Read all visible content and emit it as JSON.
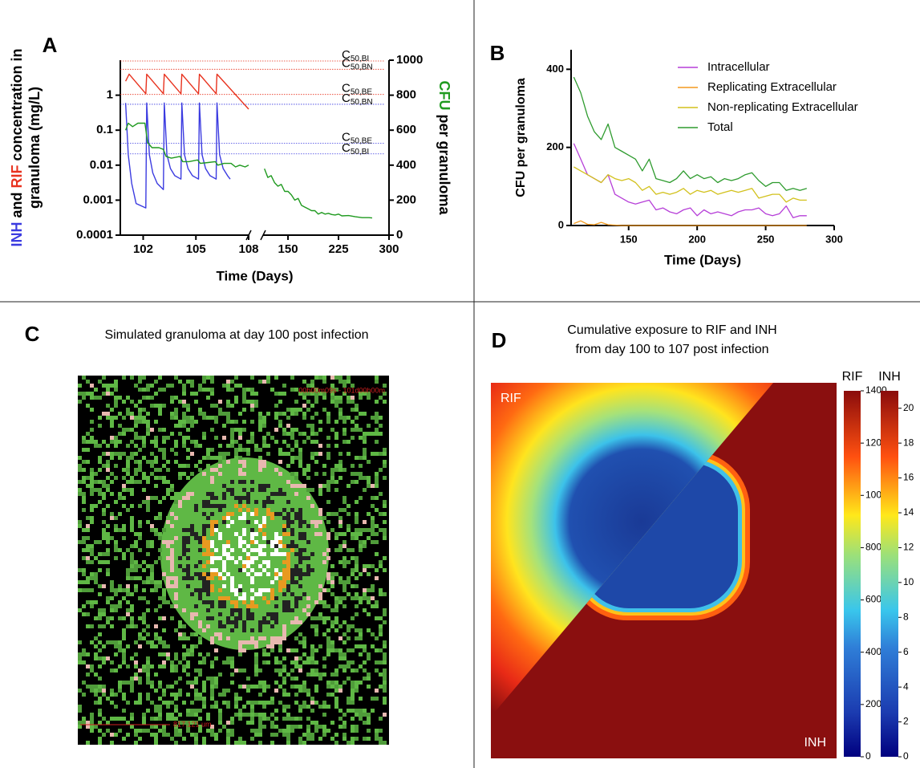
{
  "chart_data": [
    {
      "type": "line",
      "panel": "A",
      "ylabel": [
        [
          {
            "text": "INH",
            "color": "#3b3be0"
          },
          {
            "text": " and "
          },
          {
            "text": "RIF",
            "color": "#e8321e"
          },
          {
            "text": " concentration in"
          }
        ],
        [
          {
            "text": "granuloma (mg/L)"
          }
        ]
      ],
      "y2label": [
        {
          "text": "CFU",
          "color": "#1f9a1f"
        },
        {
          "text": " per granuloma"
        }
      ],
      "xlabel": "Time (Days)",
      "x_segments": [
        {
          "xlim": [
            100.7,
            108
          ],
          "xticks": [
            102,
            105,
            108
          ]
        },
        {
          "xlim": [
            113,
            300
          ],
          "xticks": [
            150,
            225,
            300
          ]
        }
      ],
      "yscale": "log",
      "ylim": [
        0.0001,
        10
      ],
      "yticks": [
        0.0001,
        0.001,
        0.01,
        0.1,
        1
      ],
      "y2lim": [
        0,
        1000
      ],
      "y2ticks": [
        0,
        200,
        400,
        600,
        800,
        1000
      ],
      "reference_lines": [
        {
          "value": 9.5,
          "color": "#e8321e",
          "symbol": "C",
          "subscript": "50,BI"
        },
        {
          "value": 5.5,
          "color": "#e8321e",
          "symbol": "C",
          "subscript": "50,BN"
        },
        {
          "value": 1.05,
          "color": "#e8321e",
          "symbol": "C",
          "subscript": "50,BE"
        },
        {
          "value": 0.55,
          "color": "#3b3be0",
          "symbol": "C",
          "subscript": "50,BN"
        },
        {
          "value": 0.042,
          "color": "#3b3be0",
          "symbol": "C",
          "subscript": "50,BE"
        },
        {
          "value": 0.021,
          "color": "#3b3be0",
          "symbol": "C",
          "subscript": "50,BI"
        }
      ],
      "series": [
        {
          "color": "#3b3be0",
          "x": [
            101.0,
            101.15,
            101.35,
            101.6,
            102.15,
            102.2,
            102.35,
            102.55,
            102.8,
            103.15,
            103.2,
            103.35,
            103.55,
            103.8,
            104.15,
            104.2,
            104.35,
            104.55,
            104.8,
            105.15,
            105.2,
            105.35,
            105.55,
            105.8,
            106.15,
            106.2,
            106.35,
            106.55,
            106.8,
            106.95
          ],
          "values": [
            0.6,
            0.02,
            0.003,
            0.0008,
            0.0006,
            0.6,
            0.02,
            0.006,
            0.003,
            0.002,
            0.6,
            0.02,
            0.008,
            0.005,
            0.004,
            0.6,
            0.02,
            0.008,
            0.005,
            0.004,
            0.6,
            0.02,
            0.008,
            0.005,
            0.004,
            0.6,
            0.02,
            0.008,
            0.005,
            0.004
          ]
        },
        {
          "color": "#e8321e",
          "x": [
            101.0,
            101.2,
            102.15,
            102.2,
            103.15,
            103.2,
            104.15,
            104.2,
            105.15,
            105.2,
            106.15,
            106.2,
            108.0
          ],
          "values": [
            2.5,
            4,
            1.1,
            4,
            1.1,
            4,
            1.1,
            4,
            1.1,
            4,
            1.1,
            4,
            0.4
          ]
        },
        {
          "color": "#1f9a1f",
          "axis": "y2",
          "x": [
            101.0,
            101.15,
            101.4,
            101.7,
            102.1,
            102.25,
            102.5,
            102.9,
            103.15,
            103.3,
            103.6,
            104.1,
            104.25,
            104.6,
            105.1,
            105.25,
            105.7,
            106.1,
            106.25,
            106.6,
            107.0,
            107.25,
            107.5,
            107.8,
            108.0
          ],
          "values": [
            600,
            640,
            620,
            640,
            640,
            530,
            500,
            500,
            490,
            450,
            440,
            450,
            420,
            420,
            430,
            410,
            415,
            420,
            400,
            410,
            410,
            390,
            400,
            390,
            400
          ]
        },
        {
          "color": "#1f9a1f",
          "axis": "y2",
          "x": [
            115,
            120,
            125,
            130,
            135,
            140,
            145,
            150,
            155,
            160,
            165,
            170,
            175,
            180,
            185,
            190,
            195,
            200,
            205,
            210,
            215,
            220,
            225,
            230,
            240,
            250,
            260,
            270,
            275
          ],
          "values": [
            380,
            330,
            340,
            300,
            280,
            290,
            250,
            250,
            230,
            200,
            210,
            170,
            160,
            150,
            140,
            140,
            120,
            130,
            120,
            125,
            118,
            115,
            120,
            110,
            112,
            105,
            100,
            100,
            98
          ]
        }
      ]
    },
    {
      "type": "line",
      "panel": "B",
      "ylabel": "CFU per granuloma",
      "xlabel": "Time (Days)",
      "xlim": [
        108,
        300
      ],
      "xticks": [
        150,
        200,
        250,
        300
      ],
      "ylim": [
        0,
        450
      ],
      "yticks": [
        0,
        200,
        400
      ],
      "legend": "upper right",
      "x": [
        110,
        115,
        120,
        125,
        130,
        135,
        140,
        145,
        150,
        155,
        160,
        165,
        170,
        175,
        180,
        185,
        190,
        195,
        200,
        205,
        210,
        215,
        220,
        225,
        230,
        235,
        240,
        245,
        250,
        255,
        260,
        265,
        270,
        275,
        280
      ],
      "series": [
        {
          "name": "Intracellular",
          "color": "#b63fd8",
          "values": [
            210,
            170,
            130,
            120,
            110,
            130,
            80,
            70,
            60,
            55,
            60,
            65,
            40,
            45,
            35,
            30,
            40,
            45,
            25,
            40,
            30,
            35,
            30,
            25,
            35,
            40,
            40,
            45,
            30,
            25,
            30,
            50,
            20,
            25,
            25
          ]
        },
        {
          "name": "Replicating Extracellular",
          "color": "#f39a1e",
          "values": [
            5,
            12,
            3,
            2,
            8,
            2,
            1,
            0,
            0,
            0,
            0,
            0,
            0,
            0,
            0,
            0,
            0,
            0,
            0,
            0,
            0,
            0,
            0,
            0,
            0,
            0,
            0,
            0,
            0,
            0,
            0,
            0,
            0,
            0,
            0
          ]
        },
        {
          "name": "Non-replicating Extracellular",
          "color": "#d2c11c",
          "values": [
            150,
            140,
            130,
            120,
            110,
            130,
            120,
            115,
            120,
            110,
            90,
            100,
            80,
            85,
            80,
            85,
            95,
            80,
            90,
            85,
            90,
            80,
            85,
            90,
            85,
            90,
            95,
            70,
            75,
            80,
            80,
            60,
            70,
            65,
            65
          ]
        },
        {
          "name": "Total",
          "color": "#2e9b2e",
          "values": [
            380,
            340,
            280,
            240,
            220,
            260,
            200,
            190,
            180,
            170,
            140,
            170,
            120,
            115,
            110,
            120,
            140,
            120,
            130,
            120,
            125,
            110,
            120,
            115,
            120,
            130,
            135,
            115,
            100,
            110,
            110,
            90,
            95,
            90,
            95
          ]
        }
      ]
    },
    {
      "type": "image",
      "panel": "C",
      "title": "Simulated granuloma at day 100 post infection",
      "timestamp": "00h00m09s - 101d00h00m",
      "scale_bar": "817.121 um"
    },
    {
      "type": "heatmap",
      "panel": "D",
      "title": [
        "Cumulative exposure to RIF and INH",
        "from day 100 to 107 post infection"
      ],
      "region_labels": [
        "RIF",
        "INH"
      ],
      "colorbars": [
        {
          "title": "RIF",
          "lim": [
            0,
            1400
          ],
          "ticks": [
            0,
            200,
            400,
            600,
            800,
            1000,
            1200,
            1400
          ]
        },
        {
          "title": "INH",
          "lim": [
            0,
            21
          ],
          "ticks": [
            0,
            2,
            4,
            6,
            8,
            10,
            12,
            14,
            16,
            18,
            20
          ]
        }
      ]
    }
  ]
}
